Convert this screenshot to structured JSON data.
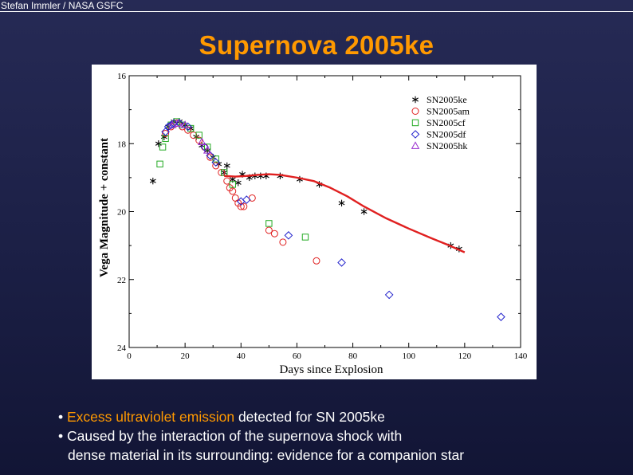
{
  "header": {
    "credit": "Stefan Immler / NASA GSFC"
  },
  "slide": {
    "title": "Supernova 2005ke"
  },
  "bullets": [
    {
      "prefix": "• ",
      "highlight": "Excess ultraviolet emission",
      "rest": " detected for SN 2005ke"
    },
    {
      "prefix": "• ",
      "highlight": "",
      "rest": "Caused by the interaction of the supernova shock with"
    },
    {
      "prefix": "",
      "highlight": "",
      "rest": "dense material in its surrounding: evidence for a companion star"
    }
  ],
  "colors": {
    "title": "#ff9900",
    "highlight": "#ff9900",
    "text": "#ffffff",
    "fit_line": "#e02020"
  },
  "chart_data": {
    "type": "scatter",
    "xlabel": "Days since Explosion",
    "ylabel": "Vega Magnitude + constant",
    "xlim": [
      0,
      140
    ],
    "ylim": [
      24,
      16
    ],
    "y_inverted": true,
    "xticks": [
      0,
      20,
      40,
      60,
      80,
      100,
      120,
      140
    ],
    "yticks": [
      16,
      18,
      20,
      22,
      24
    ],
    "legend_position": "top-right",
    "series": [
      {
        "name": "SN2005ke",
        "marker": "asterisk",
        "color": "#000000",
        "points": [
          [
            8.5,
            19.1
          ],
          [
            10.5,
            18.0
          ],
          [
            12.5,
            17.8
          ],
          [
            14,
            17.5
          ],
          [
            16,
            17.35
          ],
          [
            18,
            17.35
          ],
          [
            20,
            17.45
          ],
          [
            22,
            17.55
          ],
          [
            24,
            17.8
          ],
          [
            26,
            18.05
          ],
          [
            28,
            18.2
          ],
          [
            30,
            18.4
          ],
          [
            32,
            18.6
          ],
          [
            34,
            18.85
          ],
          [
            35,
            18.65
          ],
          [
            37,
            19.05
          ],
          [
            39,
            19.15
          ],
          [
            40.5,
            18.9
          ],
          [
            43,
            19.0
          ],
          [
            45,
            18.95
          ],
          [
            47,
            18.95
          ],
          [
            49,
            18.95
          ],
          [
            54,
            18.95
          ],
          [
            61,
            19.05
          ],
          [
            68,
            19.2
          ],
          [
            76,
            19.75
          ],
          [
            84,
            20.0
          ],
          [
            115,
            21.0
          ],
          [
            118,
            21.1
          ]
        ]
      },
      {
        "name": "SN2005am",
        "marker": "circle",
        "color": "#e02020",
        "points": [
          [
            13,
            17.7
          ],
          [
            15,
            17.5
          ],
          [
            17,
            17.4
          ],
          [
            19,
            17.5
          ],
          [
            21,
            17.6
          ],
          [
            23,
            17.75
          ],
          [
            25,
            17.9
          ],
          [
            27,
            18.1
          ],
          [
            29,
            18.4
          ],
          [
            31,
            18.65
          ],
          [
            33,
            18.85
          ],
          [
            35,
            19.1
          ],
          [
            36,
            19.3
          ],
          [
            37,
            19.4
          ],
          [
            38,
            19.6
          ],
          [
            39,
            19.75
          ],
          [
            40,
            19.85
          ],
          [
            41,
            19.85
          ],
          [
            44,
            19.6
          ],
          [
            50,
            20.55
          ],
          [
            52,
            20.65
          ],
          [
            55,
            20.9
          ],
          [
            67,
            21.45
          ]
        ]
      },
      {
        "name": "SN2005cf",
        "marker": "square",
        "color": "#22aa22",
        "points": [
          [
            11,
            18.6
          ],
          [
            12,
            18.1
          ],
          [
            13,
            17.85
          ],
          [
            15,
            17.45
          ],
          [
            17,
            17.35
          ],
          [
            19,
            17.45
          ],
          [
            22,
            17.55
          ],
          [
            25,
            17.75
          ],
          [
            28,
            18.1
          ],
          [
            31,
            18.45
          ],
          [
            34,
            18.85
          ],
          [
            37,
            19.2
          ],
          [
            50,
            20.35
          ],
          [
            63,
            20.75
          ]
        ]
      },
      {
        "name": "SN2005df",
        "marker": "diamond",
        "color": "#2222cc",
        "points": [
          [
            13,
            17.65
          ],
          [
            14,
            17.5
          ],
          [
            15,
            17.45
          ],
          [
            16,
            17.4
          ],
          [
            18,
            17.4
          ],
          [
            21,
            17.5
          ],
          [
            27,
            18.1
          ],
          [
            29,
            18.35
          ],
          [
            31,
            18.55
          ],
          [
            40,
            19.7
          ],
          [
            42,
            19.65
          ],
          [
            57,
            20.7
          ],
          [
            76,
            21.5
          ],
          [
            93,
            22.45
          ],
          [
            133,
            23.1
          ]
        ]
      },
      {
        "name": "SN2005hk",
        "marker": "triangle",
        "color": "#9b30d0",
        "points": [
          [
            15.5,
            17.45
          ],
          [
            17.5,
            17.4
          ],
          [
            20,
            17.45
          ],
          [
            26,
            17.95
          ],
          [
            28,
            18.2
          ]
        ]
      }
    ],
    "fit_line": {
      "color": "#e02020",
      "points": [
        [
          34,
          18.95
        ],
        [
          38,
          18.97
        ],
        [
          42,
          18.95
        ],
        [
          46,
          18.92
        ],
        [
          50,
          18.9
        ],
        [
          54,
          18.92
        ],
        [
          60,
          19.0
        ],
        [
          66,
          19.1
        ],
        [
          72,
          19.3
        ],
        [
          78,
          19.55
        ],
        [
          84,
          19.85
        ],
        [
          92,
          20.2
        ],
        [
          100,
          20.5
        ],
        [
          108,
          20.78
        ],
        [
          114,
          20.98
        ],
        [
          120,
          21.2
        ]
      ]
    }
  }
}
